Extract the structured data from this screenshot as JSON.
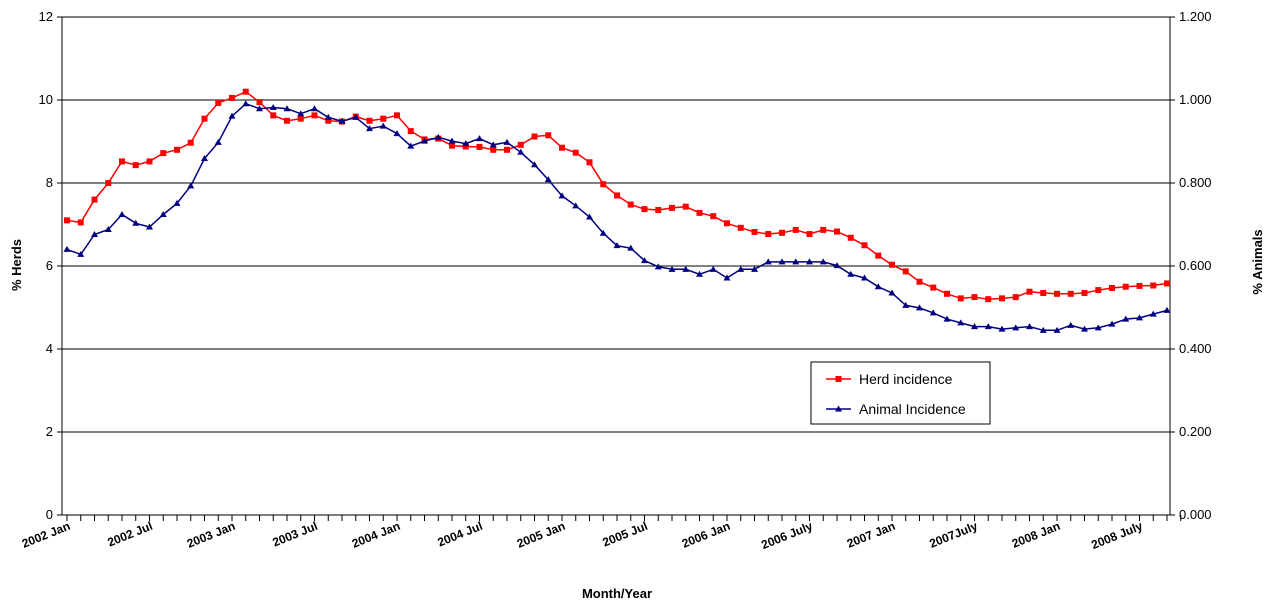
{
  "chart_data": {
    "type": "line",
    "title": "",
    "xlabel": "Month/Year",
    "ylabel_left": "% Herds",
    "ylabel_right": "% Animals",
    "ylim_left": [
      0,
      12
    ],
    "ylim_right": [
      0,
      1.2
    ],
    "yticks_left": [
      "0",
      "2",
      "4",
      "6",
      "8",
      "10",
      "12"
    ],
    "yticks_right": [
      "0.000",
      "0.200",
      "0.400",
      "0.600",
      "0.800",
      "1.000",
      "1.200"
    ],
    "grid": "horizontal",
    "legend_position": "lower-right",
    "x_tick_labels": [
      {
        "index": 0,
        "label": "2002 Jan"
      },
      {
        "index": 6,
        "label": "2002 Jul"
      },
      {
        "index": 12,
        "label": "2003 Jan"
      },
      {
        "index": 18,
        "label": "2003 Jul"
      },
      {
        "index": 24,
        "label": "2004 Jan"
      },
      {
        "index": 30,
        "label": "2004 Jul"
      },
      {
        "index": 36,
        "label": "2005 Jan"
      },
      {
        "index": 42,
        "label": "2005 Jul"
      },
      {
        "index": 48,
        "label": "2006 Jan"
      },
      {
        "index": 54,
        "label": "2006 July"
      },
      {
        "index": 60,
        "label": "2007 Jan"
      },
      {
        "index": 66,
        "label": "2007July"
      },
      {
        "index": 72,
        "label": "2008 Jan"
      },
      {
        "index": 78,
        "label": "2008 July"
      }
    ],
    "series": [
      {
        "name": "Herd incidence",
        "axis": "left",
        "color": "#ff0000",
        "marker": "square",
        "values": [
          7.1,
          7.05,
          7.6,
          8.0,
          8.52,
          8.43,
          8.52,
          8.72,
          8.8,
          8.97,
          9.55,
          9.93,
          10.05,
          10.2,
          9.95,
          9.63,
          9.5,
          9.55,
          9.63,
          9.5,
          9.48,
          9.6,
          9.5,
          9.55,
          9.63,
          9.25,
          9.05,
          9.07,
          8.9,
          8.88,
          8.87,
          8.8,
          8.8,
          8.92,
          9.12,
          9.15,
          8.85,
          8.73,
          8.5,
          7.97,
          7.7,
          7.48,
          7.37,
          7.35,
          7.4,
          7.43,
          7.28,
          7.2,
          7.03,
          6.92,
          6.82,
          6.77,
          6.8,
          6.87,
          6.77,
          6.87,
          6.83,
          6.68,
          6.5,
          6.25,
          6.03,
          5.87,
          5.62,
          5.48,
          5.33,
          5.22,
          5.25,
          5.2,
          5.22,
          5.25,
          5.38,
          5.35,
          5.33,
          5.33,
          5.35,
          5.42,
          5.47,
          5.5,
          5.52,
          5.53,
          5.58
        ]
      },
      {
        "name": "Animal Incidence",
        "axis": "right",
        "color": "#000080",
        "marker": "triangle",
        "values": [
          0.64,
          0.628,
          0.676,
          0.688,
          0.724,
          0.703,
          0.694,
          0.724,
          0.751,
          0.793,
          0.859,
          0.898,
          0.961,
          0.991,
          0.979,
          0.982,
          0.979,
          0.967,
          0.979,
          0.958,
          0.949,
          0.958,
          0.931,
          0.937,
          0.919,
          0.889,
          0.901,
          0.91,
          0.901,
          0.895,
          0.907,
          0.892,
          0.898,
          0.874,
          0.844,
          0.808,
          0.769,
          0.745,
          0.718,
          0.679,
          0.649,
          0.643,
          0.613,
          0.598,
          0.592,
          0.592,
          0.58,
          0.592,
          0.571,
          0.592,
          0.592,
          0.61,
          0.61,
          0.61,
          0.61,
          0.61,
          0.601,
          0.58,
          0.571,
          0.55,
          0.535,
          0.505,
          0.499,
          0.487,
          0.472,
          0.463,
          0.454,
          0.454,
          0.448,
          0.451,
          0.454,
          0.445,
          0.445,
          0.457,
          0.448,
          0.451,
          0.46,
          0.472,
          0.475,
          0.484,
          0.493
        ]
      }
    ]
  }
}
